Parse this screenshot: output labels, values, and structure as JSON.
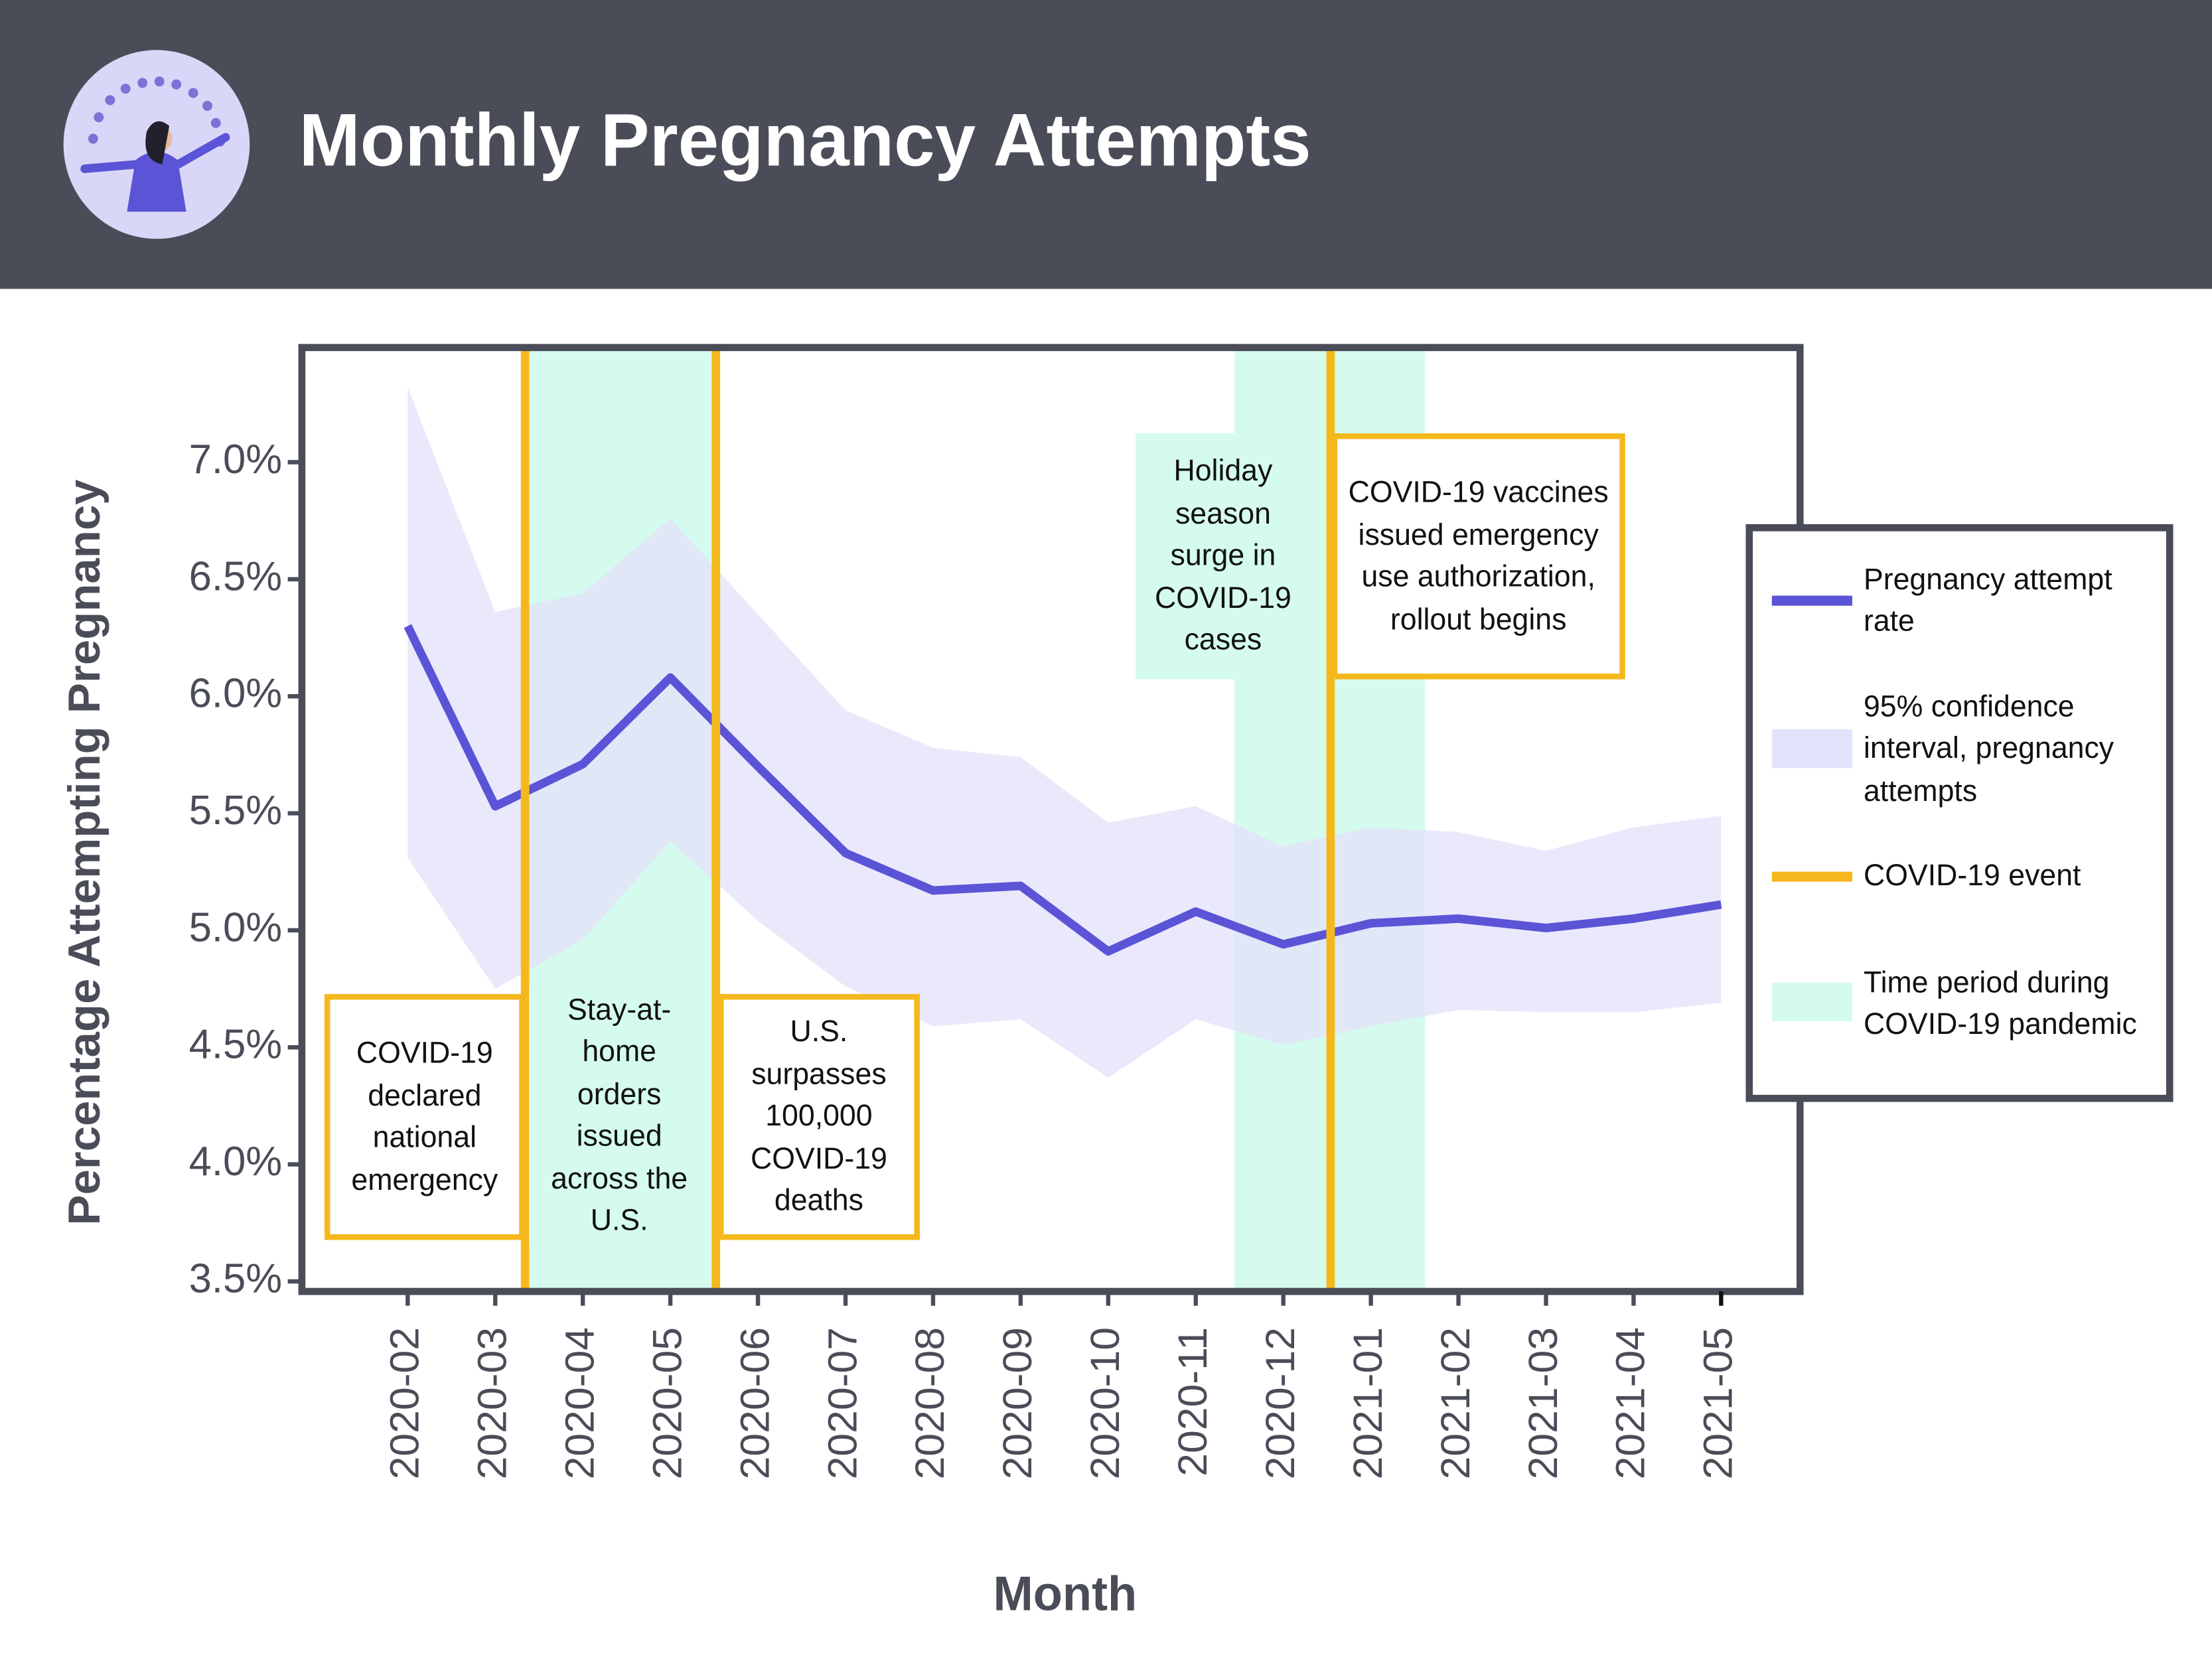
{
  "chart_data": {
    "type": "line",
    "title": "Monthly Pregnancy Attempts",
    "x_label": "Month",
    "y_label": "Percentage Attempting Pregnancy",
    "x": [
      "2020-02",
      "2020-03",
      "2020-04",
      "2020-05",
      "2020-06",
      "2020-07",
      "2020-08",
      "2020-09",
      "2020-10",
      "2020-11",
      "2020-12",
      "2021-01",
      "2021-02",
      "2021-03",
      "2021-04",
      "2021-05"
    ],
    "series": [
      {
        "name": "Pregnancy attempt rate",
        "color": "#5b54d6",
        "values": [
          6.3,
          5.53,
          5.71,
          6.08,
          5.7,
          5.33,
          5.17,
          5.19,
          4.91,
          5.08,
          4.94,
          5.03,
          5.05,
          5.01,
          5.05,
          5.11
        ]
      }
    ],
    "band": {
      "name": "95% confidence interval, pregnancy attempts",
      "color": "#e3e2fb",
      "upper": [
        7.32,
        6.36,
        6.44,
        6.76,
        6.35,
        5.94,
        5.78,
        5.74,
        5.46,
        5.53,
        5.36,
        5.44,
        5.42,
        5.34,
        5.44,
        5.49
      ],
      "lower": [
        5.31,
        4.75,
        4.96,
        5.38,
        5.04,
        4.76,
        4.59,
        4.62,
        4.37,
        4.62,
        4.51,
        4.59,
        4.66,
        4.65,
        4.65,
        4.69
      ]
    },
    "events": {
      "name": "COVID-19 event",
      "color": "#f5b81c"
    },
    "periods": {
      "name": "Time period during COVID-19 pandemic",
      "color": "#d5fbee"
    },
    "annotations": [
      "COVID-19 declared national emergency",
      "Stay-at-home orders issued across the U.S.",
      "U.S. surpasses 100,000 COVID-19 deaths",
      "Holiday season surge in COVID-19 cases",
      "COVID-19 vaccines issued emergency use authorization, rollout begins"
    ],
    "ylim": [
      3.457,
      7.49
    ],
    "yticks": [
      {
        "value": 3.5,
        "label": "3.5%"
      },
      {
        "value": 4.0,
        "label": "4.0%"
      },
      {
        "value": 4.5,
        "label": "4.5%"
      },
      {
        "value": 5.0,
        "label": "5.0%"
      },
      {
        "value": 5.5,
        "label": "5.5%"
      },
      {
        "value": 6.0,
        "label": "6.0%"
      },
      {
        "value": 6.5,
        "label": "6.5%"
      },
      {
        "value": 7.0,
        "label": "7.0%"
      }
    ],
    "legend": "right"
  }
}
